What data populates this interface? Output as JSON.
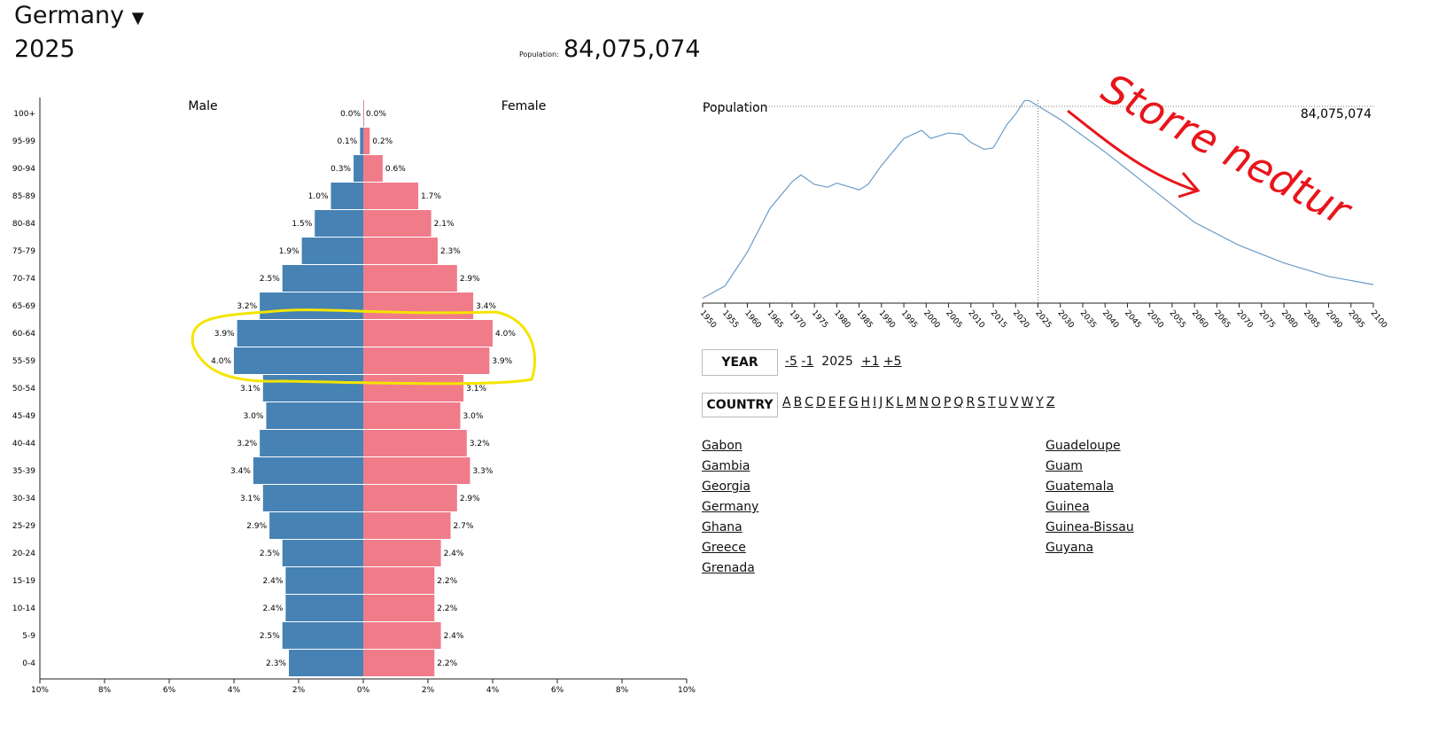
{
  "header": {
    "country": "Germany",
    "year": "2025",
    "population_label": "Population:",
    "population": "84,075,074"
  },
  "chart_data": [
    {
      "type": "bar",
      "subtype": "population-pyramid",
      "unit": "%",
      "series_labels": {
        "male": "Male",
        "female": "Female"
      },
      "colors": {
        "male": "#4682b4",
        "female": "#f07c8a"
      },
      "categories": [
        "100+",
        "95-99",
        "90-94",
        "85-89",
        "80-84",
        "75-79",
        "70-74",
        "65-69",
        "60-64",
        "55-59",
        "50-54",
        "45-49",
        "40-44",
        "35-39",
        "30-34",
        "25-29",
        "20-24",
        "15-19",
        "10-14",
        "5-9",
        "0-4"
      ],
      "male": [
        0.0,
        0.1,
        0.3,
        1.0,
        1.5,
        1.9,
        2.5,
        3.2,
        3.9,
        4.0,
        3.1,
        3.0,
        3.2,
        3.4,
        3.1,
        2.9,
        2.5,
        2.4,
        2.4,
        2.5,
        2.3
      ],
      "female": [
        0.0,
        0.2,
        0.6,
        1.7,
        2.1,
        2.3,
        2.9,
        3.4,
        4.0,
        3.9,
        3.1,
        3.0,
        3.2,
        3.3,
        2.9,
        2.7,
        2.4,
        2.2,
        2.2,
        2.4,
        2.2
      ],
      "xticks": [
        "10%",
        "8%",
        "6%",
        "4%",
        "2%",
        "0%",
        "2%",
        "4%",
        "6%",
        "8%",
        "10%"
      ],
      "xlim": [
        -10,
        10
      ]
    },
    {
      "type": "line",
      "title": "Population",
      "current_value_label": "84,075,074",
      "marker_year": 2025,
      "color": "#6a9bc8",
      "x": [
        1950,
        1955,
        1960,
        1965,
        1970,
        1972,
        1975,
        1978,
        1980,
        1985,
        1987,
        1990,
        1995,
        1999,
        2001,
        2005,
        2008,
        2010,
        2013,
        2015,
        2018,
        2020,
        2022,
        2023,
        2025,
        2030,
        2040,
        2050,
        2060,
        2070,
        2080,
        2090,
        2100
      ],
      "y_millions": [
        69.9,
        70.8,
        73.3,
        76.5,
        78.5,
        79.0,
        78.3,
        78.1,
        78.4,
        77.9,
        78.3,
        79.7,
        81.7,
        82.3,
        81.7,
        82.1,
        82.0,
        81.4,
        80.9,
        81.0,
        82.7,
        83.5,
        84.5,
        84.5,
        84.1,
        83.1,
        80.7,
        78.1,
        75.5,
        73.8,
        72.5,
        71.5,
        70.9
      ],
      "xticks": [
        "1950",
        "1955",
        "1960",
        "1965",
        "1970",
        "1975",
        "1980",
        "1985",
        "1990",
        "1995",
        "2000",
        "2005",
        "2010",
        "2015",
        "2020",
        "2025",
        "2030",
        "2035",
        "2040",
        "2045",
        "2050",
        "2055",
        "2060",
        "2065",
        "2070",
        "2075",
        "2080",
        "2085",
        "2090",
        "2095",
        "2100"
      ],
      "xlim": [
        1950,
        2100
      ]
    }
  ],
  "year_nav": {
    "label": "YEAR",
    "minus5": "-5",
    "minus1": "-1",
    "current": "2025",
    "plus1": "+1",
    "plus5": "+5"
  },
  "country_nav": {
    "label": "COUNTRY",
    "letters": [
      "A",
      "B",
      "C",
      "D",
      "E",
      "F",
      "G",
      "H",
      "I",
      "J",
      "K",
      "L",
      "M",
      "N",
      "O",
      "P",
      "Q",
      "R",
      "S",
      "T",
      "U",
      "V",
      "W",
      "Y",
      "Z"
    ]
  },
  "countries": {
    "col1": [
      "Gabon",
      "Gambia",
      "Georgia",
      "Germany",
      "Ghana",
      "Greece",
      "Grenada"
    ],
    "col2": [
      "Guadeloupe",
      "Guam",
      "Guatemala",
      "Guinea",
      "Guinea-Bissau",
      "Guyana"
    ]
  },
  "annotations": {
    "handwritten_text": "Storre nedtur",
    "ink_red": "#e8151b",
    "highlight_yellow": "#f5e400"
  }
}
